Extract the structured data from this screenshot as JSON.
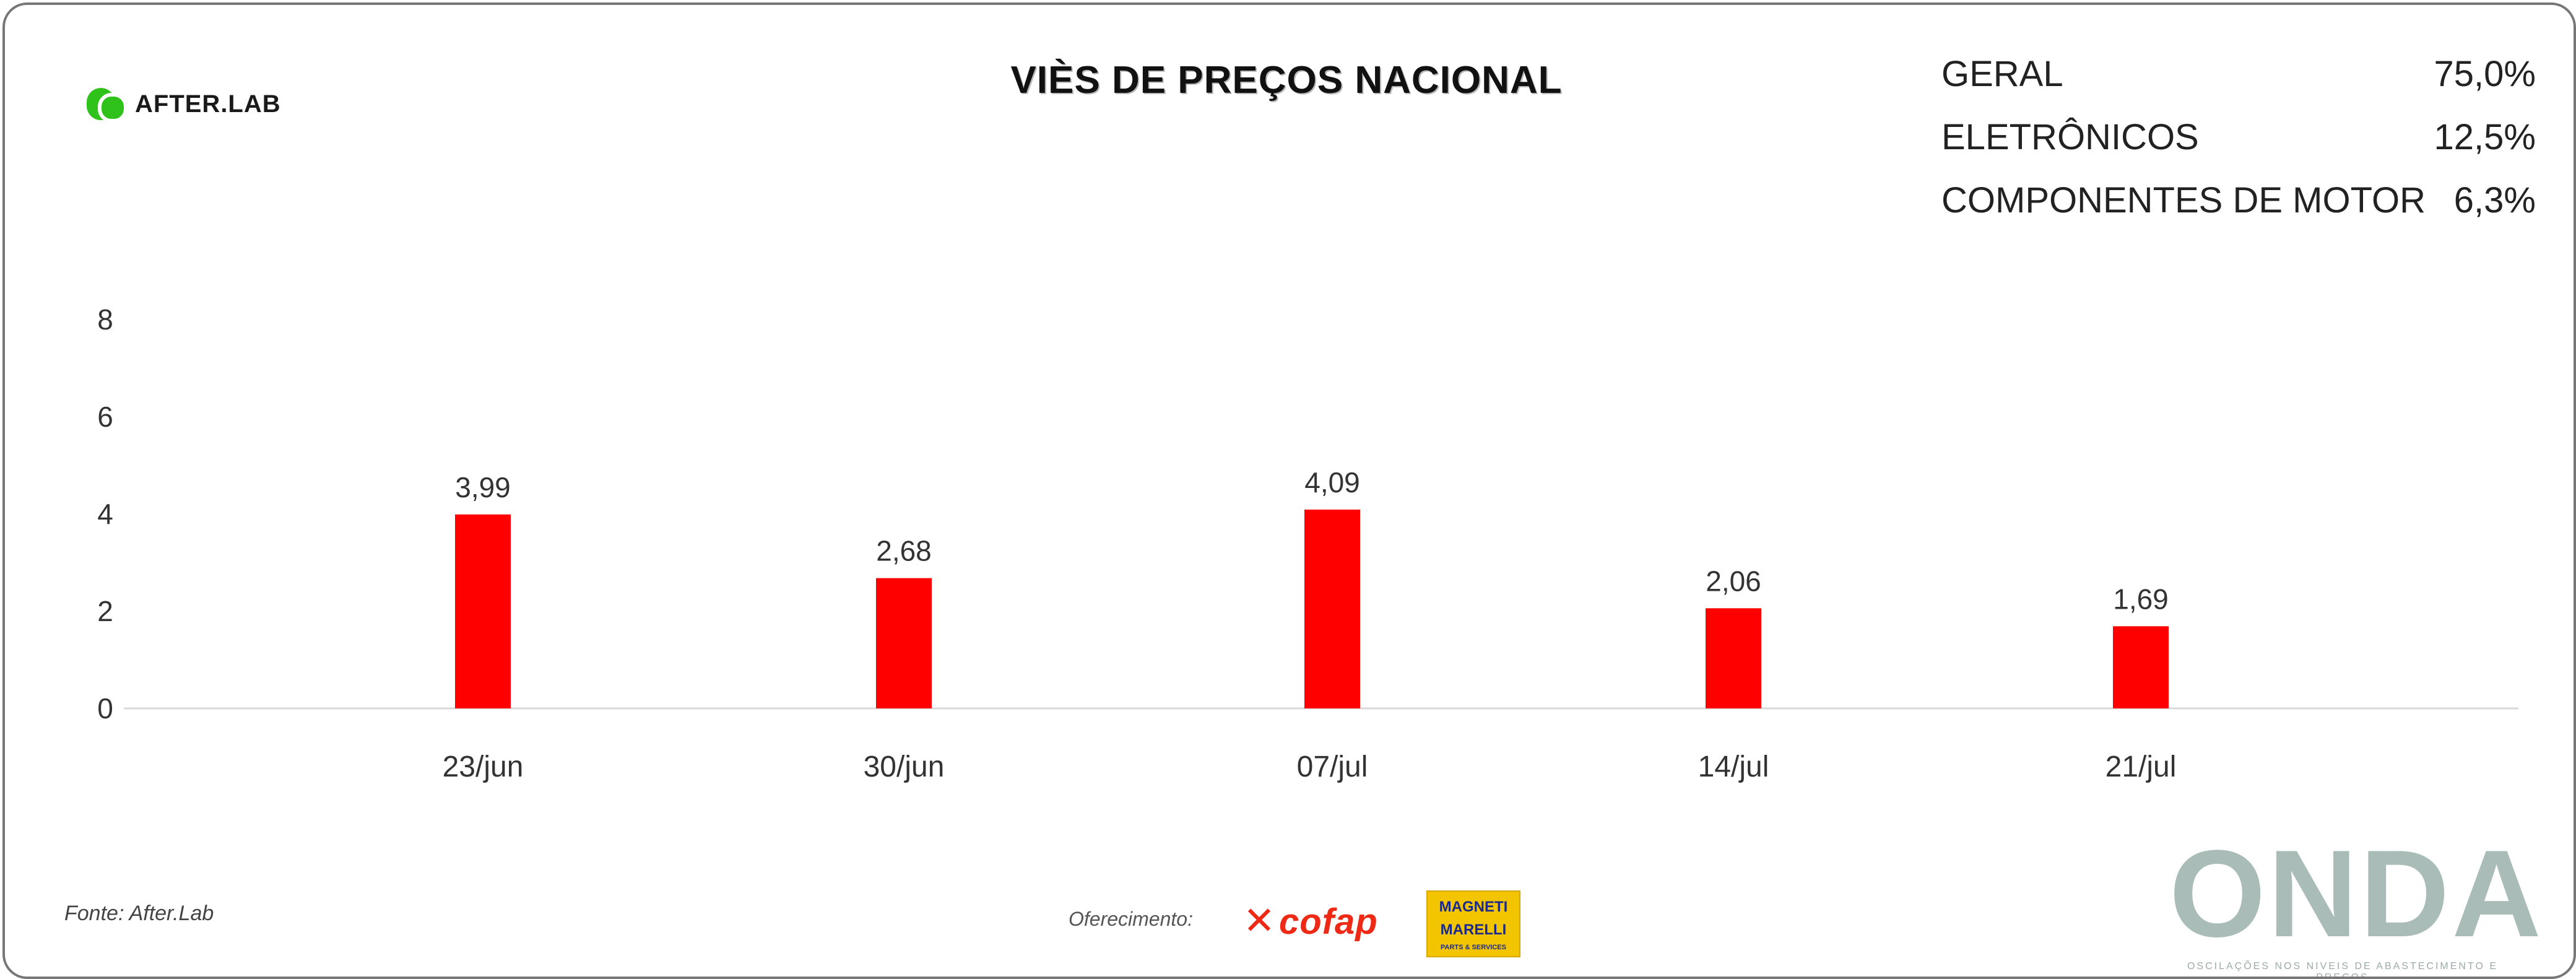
{
  "logo": {
    "text": "AFTER.LAB"
  },
  "title": "VIÈS DE PREÇOS NACIONAL",
  "summary": [
    {
      "label": "GERAL",
      "value": "75,0%"
    },
    {
      "label": "ELETRÔNICOS",
      "value": "12,5%"
    },
    {
      "label": "COMPONENTES DE MOTOR",
      "value": "6,3%"
    }
  ],
  "source": "Fonte: After.Lab",
  "sponsor_label": "Oferecimento:",
  "sponsors": {
    "cofap": "cofap",
    "magneti_line1": "MAGNETI",
    "magneti_line2": "MARELLI",
    "magneti_sub": "PARTS & SERVICES"
  },
  "brand": {
    "name": "ONDA",
    "tagline": "OSCILAÇÕES NOS NIVEIS DE ABASTECIMENTO E PREÇOS"
  },
  "colors": {
    "bar": "#ff0000",
    "axis": "#d9d9d9"
  },
  "chart_data": {
    "type": "bar",
    "categories": [
      "23/jun",
      "30/jun",
      "07/jul",
      "14/jul",
      "21/jul"
    ],
    "values": [
      3.99,
      2.68,
      4.09,
      2.06,
      1.69
    ],
    "value_labels": [
      "3,99",
      "2,68",
      "4,09",
      "2,06",
      "1,69"
    ],
    "yticks": [
      0,
      2,
      4,
      6,
      8
    ],
    "ylim": [
      0,
      8
    ],
    "grid": false,
    "title": "VIÈS DE PREÇOS NACIONAL",
    "xlabel": "",
    "ylabel": ""
  }
}
